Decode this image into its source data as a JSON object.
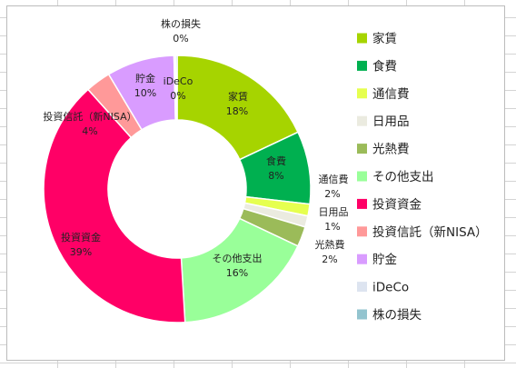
{
  "chart_data": {
    "type": "donut",
    "title": "",
    "categories": [
      "家賃",
      "食費",
      "通信費",
      "日用品",
      "光熱費",
      "その他支出",
      "投資資金",
      "投資信託（新NISA）",
      "貯金",
      "iDeCo",
      "株の損失"
    ],
    "values": [
      18,
      8,
      2,
      1,
      2,
      16,
      39,
      4,
      10,
      0,
      0
    ],
    "legend_placement": "right",
    "legend_entries": [
      "家賃",
      "食費",
      "通信費",
      "日用品",
      "光熱費",
      "その他支出",
      "投資資金",
      "投資信託（新NISA）",
      "貯金",
      "iDeCo",
      "株の損失"
    ],
    "data_labels": [
      {
        "name": "家賃",
        "pct": "18%"
      },
      {
        "name": "食費",
        "pct": "8%"
      },
      {
        "name": "通信費",
        "pct": "2%"
      },
      {
        "name": "日用品",
        "pct": "1%"
      },
      {
        "name": "光熱費",
        "pct": "2%"
      },
      {
        "name": "その他支出",
        "pct": "16%"
      },
      {
        "name": "投資資金",
        "pct": "39%"
      },
      {
        "name": "投資信託（新NISA）",
        "pct": "4%"
      },
      {
        "name": "貯金",
        "pct": "10%"
      },
      {
        "name": "iDeCo",
        "pct": "0%"
      },
      {
        "name": "株の損失",
        "pct": "0%"
      }
    ],
    "colors": [
      "#a6d400",
      "#00b050",
      "#e6ff4f",
      "#ebebe0",
      "#9bbb59",
      "#99ff99",
      "#ff0066",
      "#ff9999",
      "#d99cff",
      "#dde4f0",
      "#93c4cf"
    ]
  }
}
